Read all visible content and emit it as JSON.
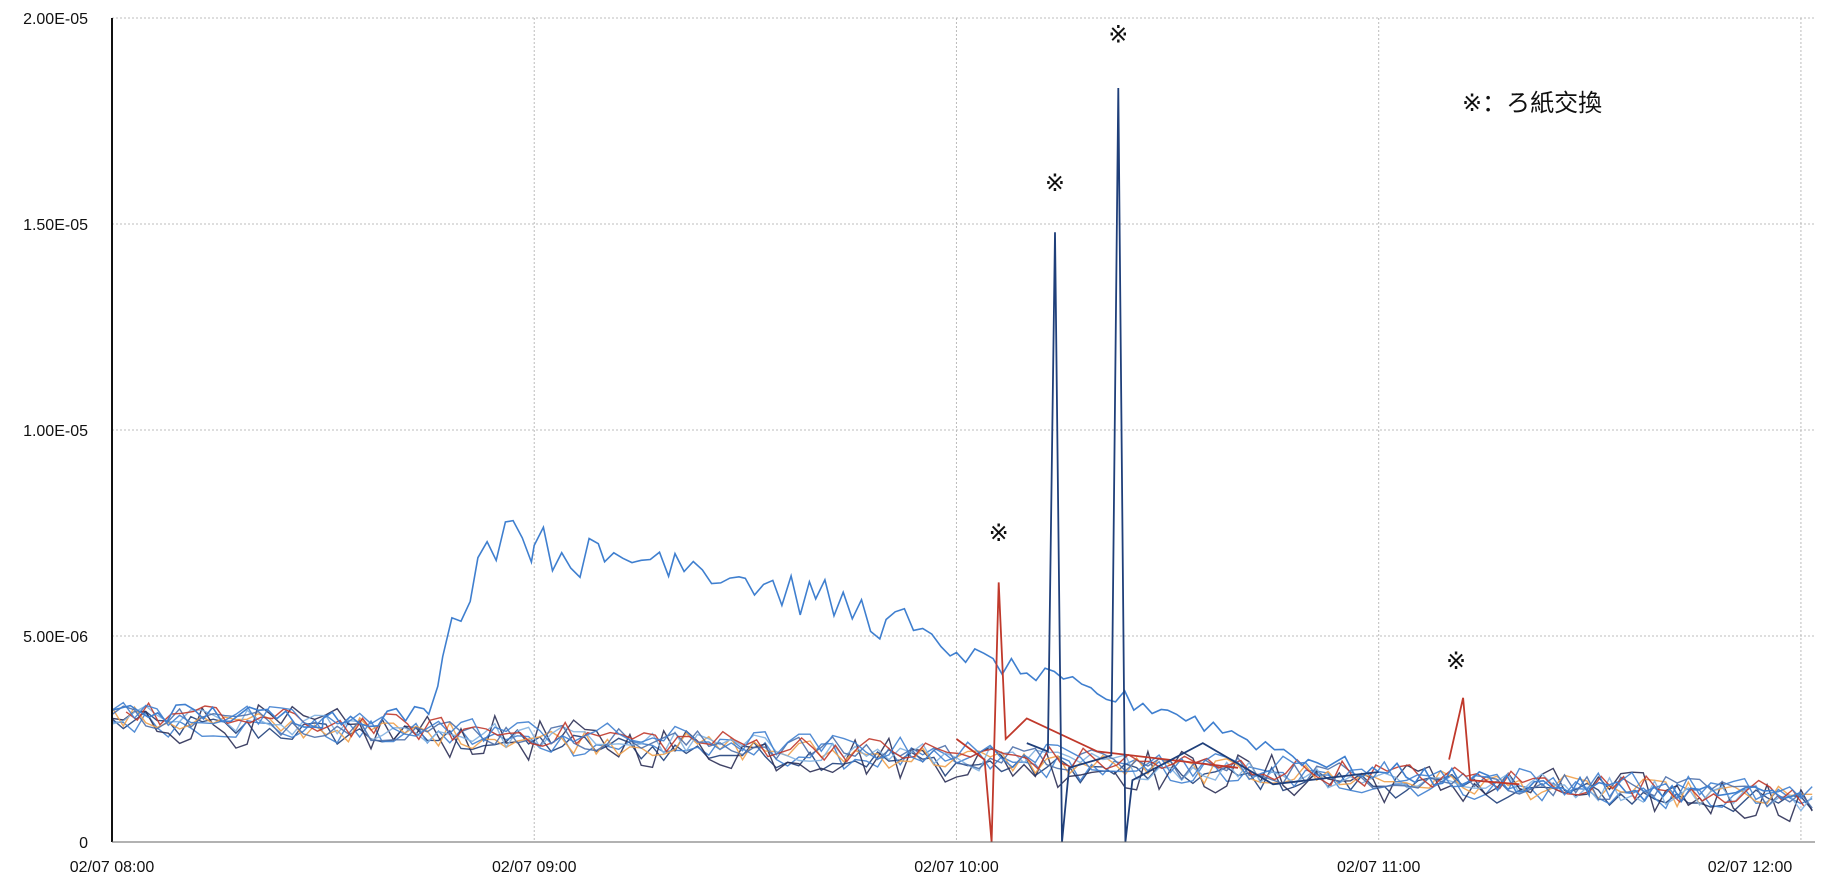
{
  "chart_data": {
    "type": "line",
    "title": "",
    "xlabel": "",
    "ylabel": "",
    "x_range": [
      "02/07 08:00",
      "02/07 12:02"
    ],
    "y_range": [
      0,
      2e-05
    ],
    "y_ticks": [
      {
        "value": 0,
        "label": "0"
      },
      {
        "value": 5e-06,
        "label": "5.00E-06"
      },
      {
        "value": 1e-05,
        "label": "1.00E-05"
      },
      {
        "value": 1.5e-05,
        "label": "1.50E-05"
      },
      {
        "value": 2e-05,
        "label": "2.00E-05"
      }
    ],
    "x_ticks": [
      {
        "time": "08:00",
        "label": "02/07 08:00"
      },
      {
        "time": "09:00",
        "label": "02/07 09:00"
      },
      {
        "time": "10:00",
        "label": "02/07 10:00"
      },
      {
        "time": "11:00",
        "label": "02/07 11:00"
      },
      {
        "time": "12:00",
        "label": "02/07 12:00"
      }
    ],
    "grid": true,
    "legend_text": "※：ろ紙交換",
    "colors": {
      "blue": "#3f7fcf",
      "navy": "#1f3f7a",
      "dark": "#2b2f55",
      "red": "#c0392b",
      "orange": "#f0a04a",
      "lightblue": "#7fb0e0",
      "steel": "#4d6fa8"
    },
    "baseline_series_count": 8,
    "series": [
      {
        "color": "blue",
        "points": [
          [
            "08:00",
            3.2e-06
          ],
          [
            "08:30",
            3e-06
          ],
          [
            "08:45",
            3.1e-06
          ],
          [
            "08:47",
            4.5e-06
          ],
          [
            "08:52",
            6.9e-06
          ],
          [
            "08:57",
            7.8e-06
          ],
          [
            "09:00",
            7.2e-06
          ],
          [
            "09:10",
            6.8e-06
          ],
          [
            "09:20",
            7e-06
          ],
          [
            "09:30",
            6.4e-06
          ],
          [
            "09:40",
            5.9e-06
          ],
          [
            "09:50",
            5.4e-06
          ],
          [
            "10:00",
            4.6e-06
          ],
          [
            "10:10",
            4.1e-06
          ],
          [
            "10:20",
            3.6e-06
          ],
          [
            "10:30",
            3.2e-06
          ],
          [
            "10:40",
            2.6e-06
          ],
          [
            "10:50",
            2e-06
          ],
          [
            "11:00",
            1.7e-06
          ],
          [
            "11:30",
            1.3e-06
          ],
          [
            "12:00",
            1.1e-06
          ]
        ]
      },
      {
        "color": "red",
        "points": [
          [
            "10:00",
            2.5e-06
          ],
          [
            "10:04",
            2e-06
          ],
          [
            "10:05",
            0
          ],
          [
            "10:06",
            6.3e-06
          ],
          [
            "10:07",
            2.5e-06
          ],
          [
            "10:10",
            3e-06
          ],
          [
            "10:20",
            2.2e-06
          ],
          [
            "10:40",
            1.8e-06
          ]
        ]
      },
      {
        "color": "navy",
        "points": [
          [
            "10:10",
            2.4e-06
          ],
          [
            "10:13",
            2.2e-06
          ],
          [
            "10:14",
            1.48e-05
          ],
          [
            "10:15",
            0
          ],
          [
            "10:16",
            1.8e-06
          ],
          [
            "10:20",
            2e-06
          ],
          [
            "10:22",
            2.1e-06
          ],
          [
            "10:23",
            1.83e-05
          ],
          [
            "10:24",
            0
          ],
          [
            "10:25",
            1.5e-06
          ],
          [
            "10:35",
            2.4e-06
          ],
          [
            "10:45",
            1.4e-06
          ],
          [
            "11:00",
            1.7e-06
          ]
        ]
      },
      {
        "color": "red",
        "points": [
          [
            "11:10",
            2e-06
          ],
          [
            "11:12",
            3.5e-06
          ],
          [
            "11:13",
            1.5e-06
          ],
          [
            "11:20",
            1.4e-06
          ]
        ]
      }
    ],
    "annotations": [
      {
        "text": "※",
        "time": "10:06",
        "value": 7.3e-06
      },
      {
        "text": "※",
        "time": "10:14",
        "value": 1.58e-05
      },
      {
        "text": "※",
        "time": "10:23",
        "value": 1.94e-05
      },
      {
        "text": "※",
        "time": "11:11",
        "value": 4.2e-06
      }
    ]
  }
}
